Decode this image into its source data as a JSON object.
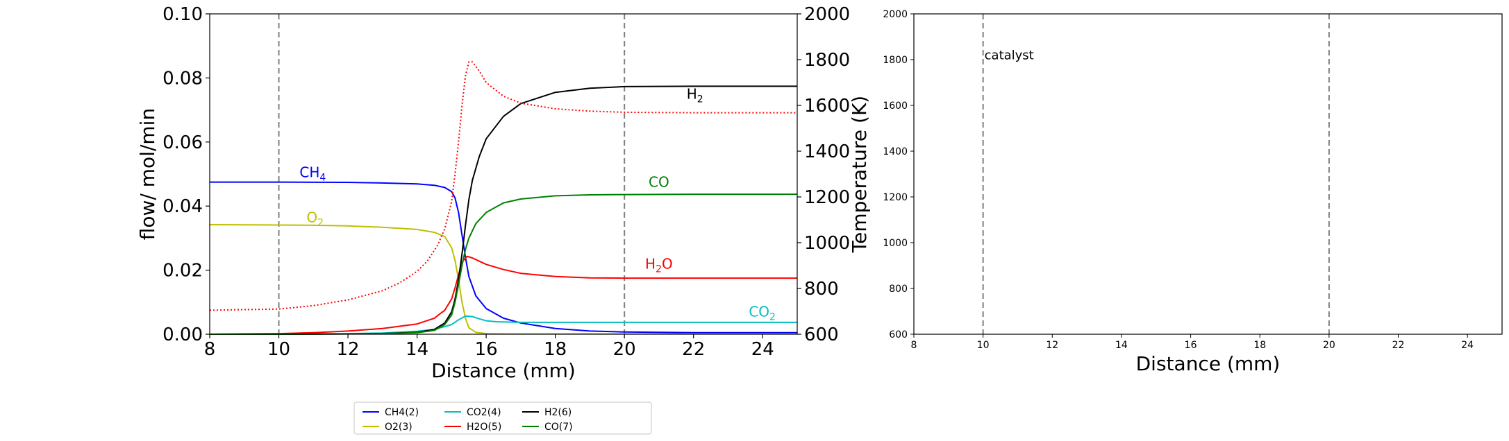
{
  "chart_data": [
    {
      "type": "line",
      "xlabel": "Distance (mm)",
      "ylabel": "flow/ mol/min",
      "y2label": "Temperature (K)",
      "xlim": [
        8,
        25
      ],
      "ylim": [
        0,
        0.1
      ],
      "y2lim": [
        600,
        2000
      ],
      "xticks": [
        "8",
        "10",
        "12",
        "14",
        "16",
        "18",
        "20",
        "22",
        "24"
      ],
      "yticks": [
        "0.00",
        "0.02",
        "0.04",
        "0.06",
        "0.08",
        "0.10"
      ],
      "y2ticks": [
        "600",
        "800",
        "1000",
        "1200",
        "1400",
        "1600",
        "1800",
        "2000"
      ],
      "grid": false,
      "catalyst_bounds": [
        10,
        20
      ],
      "series": [
        {
          "name": "CH4(2)",
          "color": "#0000ff",
          "x": [
            8,
            10,
            12,
            13,
            14,
            14.5,
            14.8,
            15.0,
            15.1,
            15.2,
            15.3,
            15.4,
            15.5,
            15.7,
            16.0,
            16.5,
            17,
            18,
            19,
            20,
            22,
            25
          ],
          "y": [
            0.0475,
            0.0475,
            0.0474,
            0.0472,
            0.0469,
            0.0465,
            0.0458,
            0.0445,
            0.0425,
            0.038,
            0.031,
            0.024,
            0.018,
            0.012,
            0.008,
            0.005,
            0.0035,
            0.0018,
            0.001,
            0.0007,
            0.0005,
            0.0005
          ]
        },
        {
          "name": "O2(3)",
          "color": "#bfbf00",
          "x": [
            8,
            10,
            11,
            12,
            13,
            14,
            14.5,
            14.8,
            15.0,
            15.1,
            15.2,
            15.3,
            15.4,
            15.5,
            15.7,
            16.0,
            16.5,
            25
          ],
          "y": [
            0.0342,
            0.0341,
            0.034,
            0.0338,
            0.0334,
            0.0327,
            0.0318,
            0.0305,
            0.027,
            0.023,
            0.017,
            0.01,
            0.005,
            0.002,
            0.0006,
            0.0002,
            0.0001,
            0.0001
          ]
        },
        {
          "name": "CO2(4)",
          "color": "#00bfbf",
          "x": [
            8,
            10,
            12,
            13,
            14,
            14.5,
            15.0,
            15.2,
            15.4,
            15.6,
            15.8,
            16.0,
            16.3,
            16.6,
            17,
            18,
            20,
            25
          ],
          "y": [
            0,
            5e-05,
            0.0002,
            0.0004,
            0.0009,
            0.0015,
            0.003,
            0.0045,
            0.0057,
            0.0055,
            0.0048,
            0.0042,
            0.0039,
            0.0038,
            0.0037,
            0.0037,
            0.0037,
            0.0037
          ]
        },
        {
          "name": "H2O(5)",
          "color": "#ff0000",
          "x": [
            8,
            10,
            11,
            12,
            13,
            14,
            14.5,
            14.8,
            15.0,
            15.1,
            15.2,
            15.3,
            15.45,
            15.6,
            15.8,
            16.0,
            16.5,
            17,
            18,
            19,
            20,
            22,
            25
          ],
          "y": [
            0,
            0.0002,
            0.0005,
            0.001,
            0.0018,
            0.0032,
            0.005,
            0.0075,
            0.011,
            0.0145,
            0.0185,
            0.0225,
            0.0243,
            0.0238,
            0.0228,
            0.0218,
            0.0202,
            0.019,
            0.018,
            0.0176,
            0.0175,
            0.0175,
            0.0175
          ]
        },
        {
          "name": "H2(6)",
          "color": "#000000",
          "x": [
            8,
            10,
            12,
            13,
            14,
            14.5,
            14.8,
            15.0,
            15.1,
            15.2,
            15.3,
            15.4,
            15.5,
            15.6,
            15.8,
            16.0,
            16.5,
            17,
            18,
            19,
            20,
            22,
            25
          ],
          "y": [
            0,
            0,
            0.0001,
            0.0002,
            0.0006,
            0.0015,
            0.0035,
            0.007,
            0.011,
            0.017,
            0.025,
            0.034,
            0.042,
            0.048,
            0.0555,
            0.061,
            0.068,
            0.072,
            0.0755,
            0.0768,
            0.0773,
            0.0774,
            0.0774
          ]
        },
        {
          "name": "CO(7)",
          "color": "#008000",
          "x": [
            8,
            10,
            12,
            13,
            14,
            14.5,
            14.8,
            15.0,
            15.1,
            15.2,
            15.3,
            15.4,
            15.5,
            15.7,
            16.0,
            16.5,
            17,
            18,
            19,
            20,
            22,
            25
          ],
          "y": [
            0,
            0,
            0.0001,
            0.0002,
            0.0005,
            0.0012,
            0.003,
            0.006,
            0.01,
            0.0155,
            0.0215,
            0.0265,
            0.03,
            0.0345,
            0.038,
            0.041,
            0.0422,
            0.0432,
            0.0435,
            0.0436,
            0.0437,
            0.0437
          ]
        },
        {
          "name": "",
          "axis": "y2",
          "style": "dotted",
          "color": "#ff0000",
          "x": [
            8,
            10,
            11,
            12,
            13,
            13.5,
            14,
            14.3,
            14.6,
            14.8,
            15.0,
            15.1,
            15.2,
            15.3,
            15.4,
            15.5,
            15.6,
            15.8,
            16.0,
            16.5,
            17,
            18,
            19,
            20,
            22,
            25
          ],
          "y": [
            705,
            710,
            725,
            750,
            790,
            825,
            875,
            920,
            990,
            1060,
            1180,
            1300,
            1440,
            1600,
            1730,
            1790,
            1790,
            1750,
            1700,
            1640,
            1610,
            1585,
            1575,
            1570,
            1568,
            1568
          ]
        }
      ],
      "annotations": [
        {
          "text": "CH",
          "sub": "4",
          "x": 10.6,
          "y": 0.049,
          "color": "#0000ff"
        },
        {
          "text": "O",
          "sub": "2",
          "x": 10.8,
          "y": 0.035,
          "color": "#bfbf00"
        },
        {
          "text": "CO",
          "sub": "",
          "x": 20.7,
          "y": 0.046,
          "color": "#008000"
        },
        {
          "text": "H",
          "sub": "2",
          "x": 21.8,
          "y": 0.0735,
          "color": "#000000"
        },
        {
          "text": "H",
          "sub": "2",
          "tail": "O",
          "x": 20.6,
          "y": 0.0205,
          "color": "#ff0000"
        },
        {
          "text": "CO",
          "sub": "2",
          "x": 23.6,
          "y": 0.0055,
          "color": "#00bfbf"
        }
      ],
      "legend": {
        "position": "below",
        "entries": [
          "CH4(2)",
          "O2(3)",
          "CO2(4)",
          "H2O(5)",
          "H2(6)",
          "CO(7)"
        ]
      }
    },
    {
      "type": "line",
      "xlabel": "Distance (mm)",
      "xlim": [
        8,
        25
      ],
      "ylim": [
        600,
        2000
      ],
      "xticks": [
        "8",
        "10",
        "12",
        "14",
        "16",
        "18",
        "20",
        "22",
        "24"
      ],
      "yticks": [
        "600",
        "800",
        "1000",
        "1200",
        "1400",
        "1600",
        "1800",
        "2000"
      ],
      "grid": false,
      "catalyst_bounds": [
        10,
        20
      ],
      "annotations": [
        {
          "text": "catalyst",
          "x": 10.0,
          "y": 1820,
          "color": "#000000"
        }
      ],
      "series": []
    }
  ]
}
